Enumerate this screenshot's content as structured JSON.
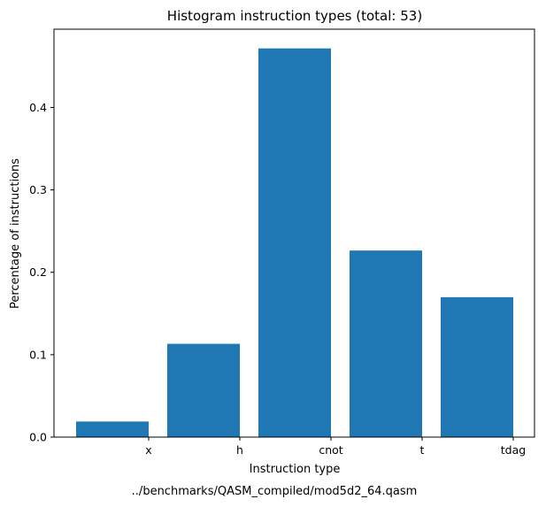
{
  "chart_data": {
    "type": "bar",
    "title": "Histogram instruction types (total: 53)",
    "xlabel": "Instruction type",
    "ylabel": "Percentage of instructions",
    "caption": "../benchmarks/QASM_compiled/mod5d2_64.qasm",
    "categories": [
      "x",
      "h",
      "cnot",
      "t",
      "tdag"
    ],
    "values": [
      0.0189,
      0.1132,
      0.4717,
      0.2264,
      0.1698
    ],
    "yticks": [
      0.0,
      0.1,
      0.2,
      0.3,
      0.4
    ],
    "ytick_labels": [
      "0.0",
      "0.1",
      "0.2",
      "0.3",
      "0.4"
    ],
    "ylim": [
      0,
      0.495
    ],
    "grid": false,
    "legend": "none",
    "bar_color": "#1f77b4"
  }
}
